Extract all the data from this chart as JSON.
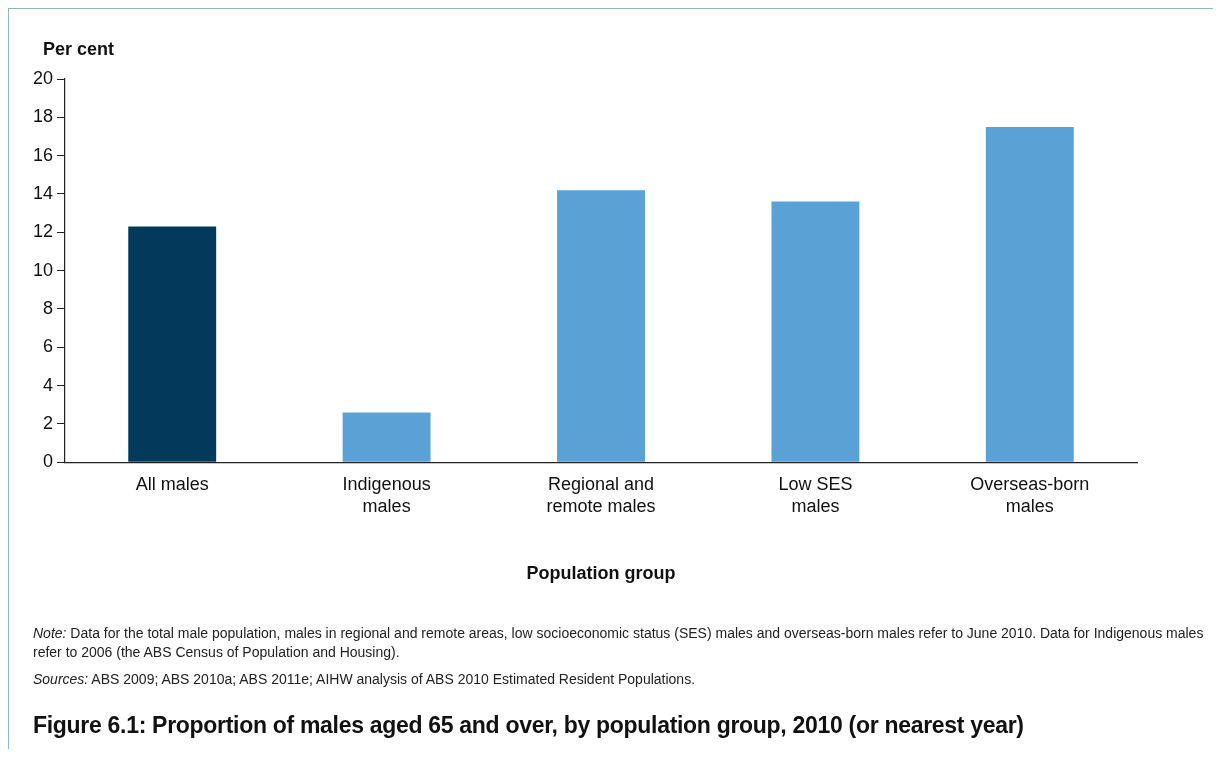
{
  "chart_data": {
    "type": "bar",
    "title": "Figure 6.1: Proportion of males aged 65 and over, by population group, 2010 (or nearest year)",
    "ylabel": "Per cent",
    "xlabel": "Population group",
    "categories": [
      "All males",
      "Indigenous males",
      "Regional and remote males",
      "Low SES males",
      "Overseas-born males"
    ],
    "values": [
      12.3,
      2.6,
      14.2,
      13.6,
      17.5
    ],
    "colors": [
      "#033a5c",
      "#5aa2d6",
      "#5aa2d6",
      "#5aa2d6",
      "#5aa2d6"
    ],
    "ylim": [
      0,
      20
    ],
    "yticks": [
      0,
      2,
      4,
      6,
      8,
      10,
      12,
      14,
      16,
      18,
      20
    ],
    "legend": false,
    "annotations": [
      "Note: Data for the total male population, males in regional and remote areas, low socioeconomic status (SES) males and overseas-born males refer to June 2010. Data for Indigenous males refer to 2006 (the ABS Census of Population and Housing).",
      "Sources: ABS 2009; ABS 2010a; ABS 2011e; AIHW analysis of ABS 2010 Estimated Resident Populations."
    ]
  }
}
